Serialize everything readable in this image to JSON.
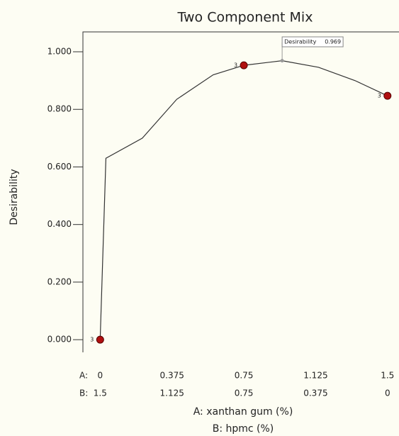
{
  "chart_data": {
    "type": "line",
    "title": "Two Component Mix",
    "ylabel": "Desirability",
    "xlabel": "A: xanthan gum (%)",
    "x2label": "B: hpmc (%)",
    "row_labels": [
      "A:",
      "B:"
    ],
    "xlim": [
      -0.09,
      1.56
    ],
    "ylim": [
      -0.044,
      1.069
    ],
    "xticks": [
      0,
      0.375,
      0.75,
      1.125,
      1.5
    ],
    "x2ticks": [
      1.5,
      1.125,
      0.75,
      0.375,
      0
    ],
    "yticks": [
      {
        "value": 0,
        "label": "0.000"
      },
      {
        "value": 0.2,
        "label": "0.200"
      },
      {
        "value": 0.4,
        "label": "0.400"
      },
      {
        "value": 0.6,
        "label": "0.600"
      },
      {
        "value": 0.8,
        "label": "0.800"
      },
      {
        "value": 1,
        "label": "1.000"
      }
    ],
    "series": [
      {
        "color": "#333333",
        "x": [
          0,
          0.03,
          0.22,
          0.4,
          0.59,
          0.75,
          0.95,
          1.14,
          1.33,
          1.5
        ],
        "values": [
          0,
          0.63,
          0.7,
          0.835,
          0.92,
          0.953,
          0.969,
          0.946,
          0.9,
          0.847
        ]
      }
    ],
    "design_points": {
      "color": "#b01010",
      "x": [
        0,
        0.75,
        1.5
      ],
      "values": [
        0,
        0.953,
        0.847
      ],
      "counts": [
        3,
        3,
        3
      ]
    },
    "annotation": {
      "text": "Desirability",
      "x": 0.95,
      "value": 0.969
    }
  }
}
